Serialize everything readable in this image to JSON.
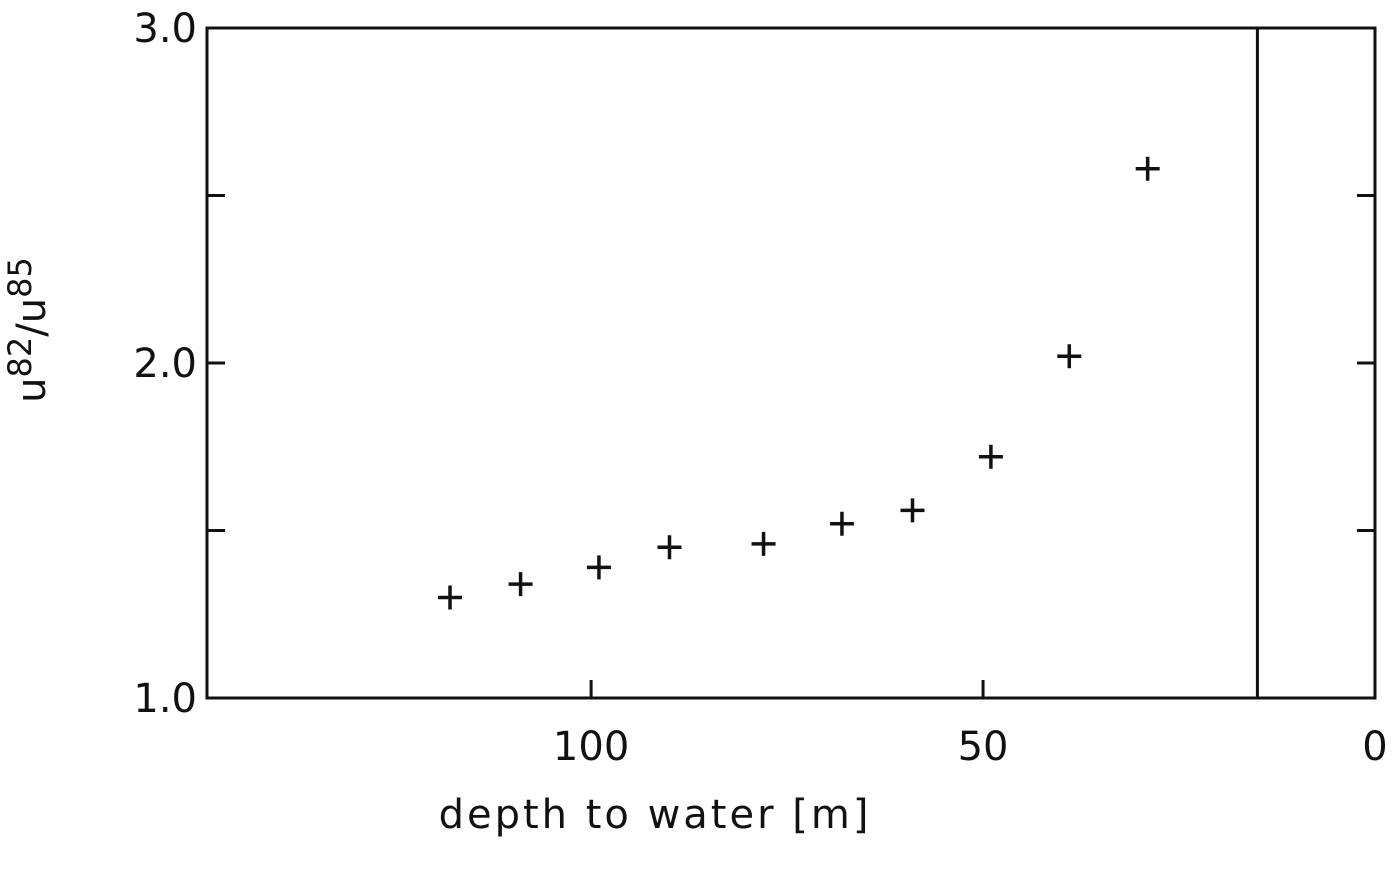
{
  "chart_data": {
    "type": "scatter",
    "x_label": "depth to water [m]",
    "y_label": [
      "u",
      "82",
      "/",
      "u",
      "85"
    ],
    "x": [
      118,
      109,
      99,
      90,
      78,
      68,
      59,
      49,
      39,
      29
    ],
    "values": [
      1.3,
      1.34,
      1.39,
      1.45,
      1.46,
      1.52,
      1.56,
      1.72,
      2.02,
      2.58
    ],
    "xlim": [
      149,
      0
    ],
    "ylim": [
      1,
      3
    ],
    "xticks": [
      100,
      50,
      0
    ],
    "yticks": [
      {
        "value": 1,
        "label": "1.0"
      },
      {
        "value": 2,
        "label": "2.0"
      },
      {
        "value": 3,
        "label": "3.0"
      }
    ],
    "yminorticks": [
      1.5,
      2.5
    ],
    "vline": 15,
    "marker": "plus",
    "color": "#111111"
  }
}
